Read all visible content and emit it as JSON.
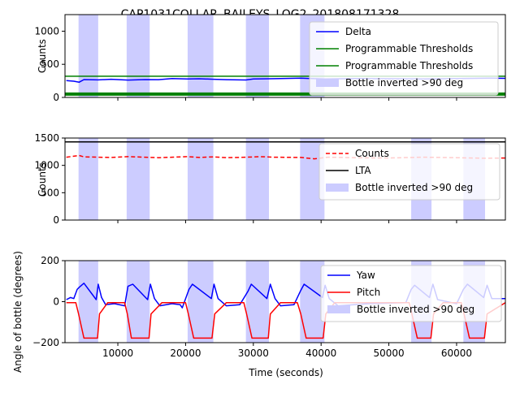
{
  "figure": {
    "title": "CAP1031COLLAR_BAILEYS_LOG2_201808171328",
    "xlabel": "Time (seconds)"
  },
  "shade_color": "#ccccff",
  "chart_data": [
    {
      "type": "line",
      "ylabel": "Counts",
      "xlim": [
        2200,
        67200
      ],
      "ylim": [
        0,
        1250
      ],
      "xticks": [
        10000,
        20000,
        30000,
        40000,
        50000,
        60000
      ],
      "yticks": [
        0,
        500,
        1000
      ],
      "ytick_labels": [
        "0",
        "500",
        "1000"
      ],
      "xtick_labels_shown": false,
      "legend_position": "upper right",
      "shaded_intervals": [
        [
          4200,
          7100
        ],
        [
          11300,
          14700
        ],
        [
          20300,
          24100
        ],
        [
          28900,
          32300
        ],
        [
          36900,
          40500
        ]
      ],
      "series": [
        {
          "name": "Delta",
          "color": "#0000ff",
          "x": [
            2400,
            3500,
            4300,
            5000,
            7100,
            9000,
            11500,
            14000,
            16000,
            18000,
            20300,
            22000,
            24100,
            26000,
            28900,
            30000,
            32300,
            34000,
            37000,
            40500,
            45000,
            50000,
            55000,
            60000,
            65000,
            67200
          ],
          "y": [
            255,
            245,
            230,
            270,
            265,
            275,
            262,
            270,
            268,
            285,
            278,
            282,
            275,
            268,
            263,
            280,
            282,
            285,
            290,
            278,
            285,
            282,
            280,
            286,
            290,
            288
          ]
        },
        {
          "name": "Programmable Thresholds",
          "color": "#008000",
          "x": [
            2200,
            67200
          ],
          "y": [
            320,
            320
          ]
        },
        {
          "name": "Programmable Thresholds",
          "color": "#008000",
          "x": [
            2200,
            67200
          ],
          "y": [
            50,
            50
          ]
        }
      ],
      "legend": [
        {
          "label": "Delta",
          "kind": "line",
          "color": "#0000ff"
        },
        {
          "label": "Programmable Thresholds",
          "kind": "line",
          "color": "#008000"
        },
        {
          "label": "Programmable Thresholds",
          "kind": "line",
          "color": "#008000"
        },
        {
          "label": "Bottle inverted >90 deg",
          "kind": "patch",
          "color": "#ccccff"
        }
      ]
    },
    {
      "type": "line",
      "ylabel": "Counts",
      "xlim": [
        2200,
        67200
      ],
      "ylim": [
        0,
        1500
      ],
      "xticks": [
        10000,
        20000,
        30000,
        40000,
        50000,
        60000
      ],
      "yticks": [
        0,
        500,
        1000,
        1500
      ],
      "ytick_labels": [
        "0",
        "500",
        "1000",
        "1500"
      ],
      "xtick_labels_shown": false,
      "legend_position": "center right",
      "shaded_intervals": [
        [
          4200,
          7100
        ],
        [
          11300,
          14700
        ],
        [
          20300,
          24100
        ],
        [
          28900,
          32300
        ],
        [
          36900,
          40500
        ],
        [
          53300,
          56300
        ],
        [
          61000,
          64200
        ]
      ],
      "series": [
        {
          "name": "Counts",
          "color": "#ff0000",
          "dash": "5,3",
          "x": [
            2400,
            4300,
            5000,
            7100,
            9000,
            11500,
            14000,
            16000,
            18000,
            20300,
            22000,
            24100,
            26000,
            29000,
            31000,
            33000,
            37000,
            39000,
            41000,
            45000,
            50000,
            55000,
            60000,
            64000,
            67200
          ],
          "y": [
            1150,
            1180,
            1155,
            1150,
            1145,
            1160,
            1150,
            1140,
            1150,
            1160,
            1145,
            1155,
            1140,
            1150,
            1160,
            1150,
            1145,
            1120,
            1150,
            1140,
            1135,
            1150,
            1140,
            1130,
            1135
          ]
        },
        {
          "name": "LTA",
          "color": "#000000",
          "x": [
            2200,
            67200
          ],
          "y": [
            1430,
            1430
          ]
        }
      ],
      "legend": [
        {
          "label": "Counts",
          "kind": "dashed",
          "color": "#ff0000"
        },
        {
          "label": "LTA",
          "kind": "line",
          "color": "#000000"
        },
        {
          "label": "Bottle inverted >90 deg",
          "kind": "patch",
          "color": "#ccccff"
        }
      ]
    },
    {
      "type": "line",
      "ylabel": "Angle of bottle (degrees)",
      "xlim": [
        2200,
        67200
      ],
      "ylim": [
        -200,
        200
      ],
      "xticks": [
        10000,
        20000,
        30000,
        40000,
        50000,
        60000
      ],
      "xtick_labels": [
        "10000",
        "20000",
        "30000",
        "40000",
        "50000",
        "60000"
      ],
      "yticks": [
        -200,
        0,
        200
      ],
      "ytick_labels": [
        "−200",
        "0",
        "200"
      ],
      "legend_position": "center right",
      "shaded_intervals": [
        [
          4200,
          7100
        ],
        [
          11300,
          14700
        ],
        [
          20300,
          24100
        ],
        [
          28900,
          32300
        ],
        [
          36900,
          40500
        ],
        [
          53300,
          56300
        ],
        [
          61000,
          64200
        ]
      ],
      "series": [
        {
          "name": "Yaw",
          "color": "#0000ff",
          "x": [
            2400,
            3000,
            3500,
            4000,
            4300,
            5000,
            6800,
            7100,
            7600,
            8200,
            9500,
            11000,
            11500,
            12200,
            14400,
            14800,
            15400,
            16200,
            18000,
            19200,
            19500,
            20500,
            21000,
            23800,
            24200,
            24800,
            26000,
            28000,
            29200,
            29700,
            32000,
            32500,
            33200,
            34000,
            36000,
            37000,
            37500,
            40200,
            40600,
            41200,
            42500,
            47000,
            52500,
            53300,
            53800,
            56000,
            56500,
            57200,
            60000,
            61000,
            61600,
            64000,
            64500,
            65200,
            67200
          ],
          "y": [
            10,
            20,
            15,
            60,
            70,
            90,
            10,
            85,
            20,
            -15,
            -10,
            -20,
            75,
            85,
            10,
            85,
            15,
            -20,
            -10,
            -15,
            -30,
            60,
            85,
            15,
            85,
            15,
            -20,
            -15,
            50,
            85,
            15,
            85,
            15,
            -20,
            -15,
            55,
            85,
            20,
            80,
            15,
            -20,
            -10,
            -5,
            60,
            80,
            20,
            85,
            10,
            -10,
            60,
            85,
            20,
            80,
            15,
            15
          ]
        },
        {
          "name": "Pitch",
          "color": "#ff0000",
          "x": [
            2400,
            3800,
            4200,
            5000,
            7000,
            7300,
            8500,
            11000,
            11400,
            12000,
            14600,
            14900,
            16500,
            20000,
            20400,
            21200,
            23900,
            24300,
            26000,
            28600,
            29000,
            29800,
            32200,
            32500,
            34000,
            36500,
            37000,
            37800,
            40300,
            40700,
            42000,
            53000,
            53400,
            54200,
            56200,
            56600,
            58000,
            60700,
            61100,
            61900,
            64100,
            64500,
            67200
          ],
          "y": [
            -5,
            -5,
            -60,
            -178,
            -178,
            -60,
            -5,
            -5,
            -60,
            -178,
            -178,
            -60,
            -5,
            -5,
            -60,
            -178,
            -178,
            -60,
            -5,
            -5,
            -60,
            -178,
            -178,
            -60,
            -5,
            -5,
            -60,
            -178,
            -178,
            -60,
            -5,
            -5,
            -60,
            -178,
            -178,
            -60,
            -5,
            -5,
            -60,
            -178,
            -178,
            -60,
            -5
          ]
        }
      ],
      "legend": [
        {
          "label": "Yaw",
          "kind": "line",
          "color": "#0000ff"
        },
        {
          "label": "Pitch",
          "kind": "line",
          "color": "#ff0000"
        },
        {
          "label": "Bottle inverted >90 deg",
          "kind": "patch",
          "color": "#ccccff"
        }
      ]
    }
  ]
}
